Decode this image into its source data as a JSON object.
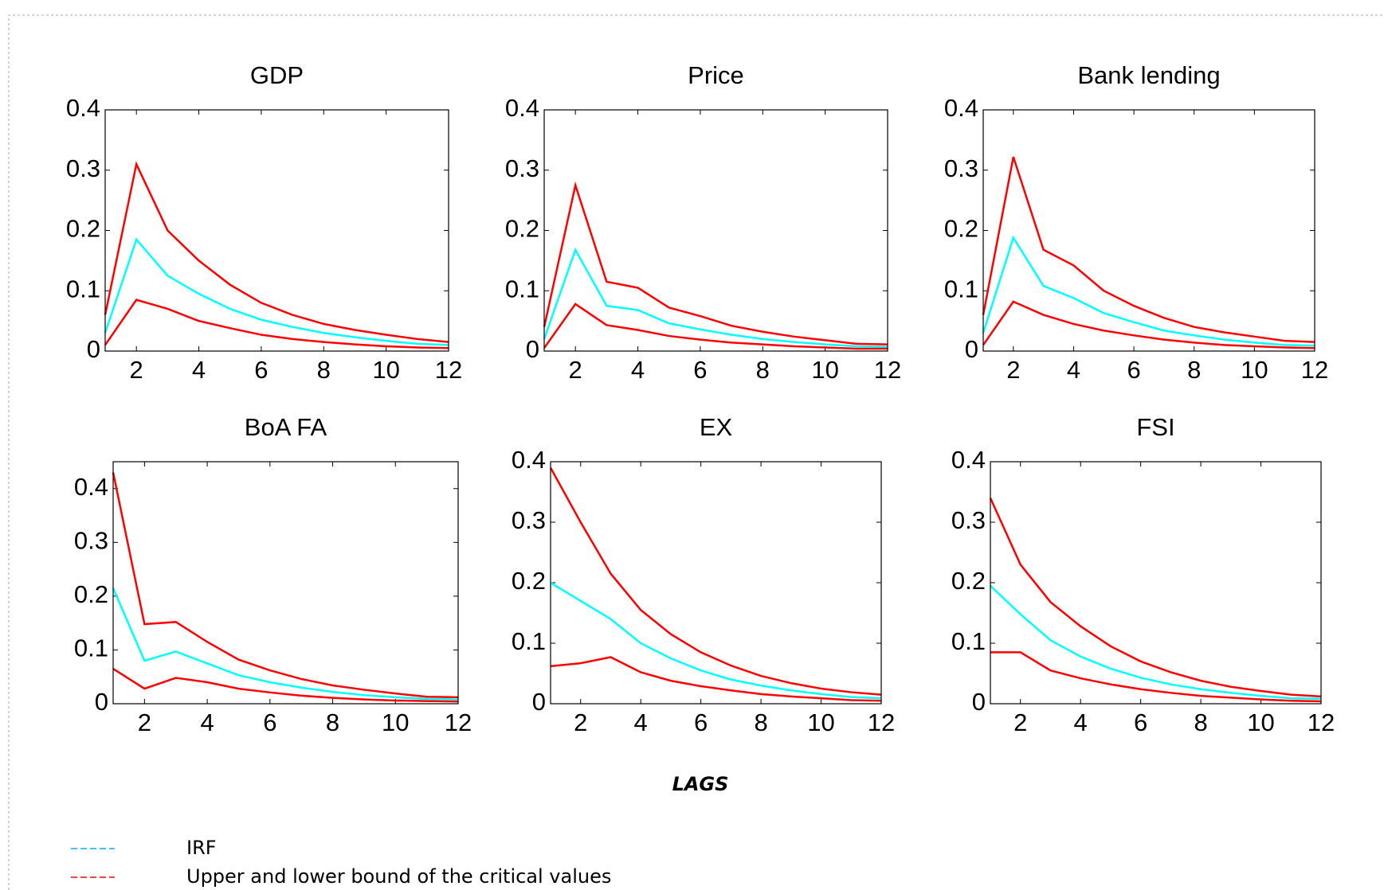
{
  "chart_data": [
    {
      "type": "line",
      "title": "GDP",
      "x": [
        1,
        2,
        3,
        4,
        5,
        6,
        7,
        8,
        9,
        10,
        11,
        12
      ],
      "xlim": [
        1,
        12
      ],
      "xticks": [
        2,
        4,
        6,
        8,
        10,
        12
      ],
      "ylim": [
        0,
        0.4
      ],
      "yticks": [
        0,
        0.1,
        0.2,
        0.3,
        0.4
      ],
      "series": [
        {
          "color": "#ff0000",
          "values": [
            0.06,
            0.31,
            0.2,
            0.15,
            0.11,
            0.08,
            0.06,
            0.045,
            0.035,
            0.027,
            0.02,
            0.015
          ]
        },
        {
          "color": "#00ffff",
          "values": [
            0.03,
            0.185,
            0.125,
            0.095,
            0.07,
            0.052,
            0.04,
            0.03,
            0.023,
            0.017,
            0.012,
            0.01
          ]
        },
        {
          "color": "#ff0000",
          "values": [
            0.01,
            0.085,
            0.07,
            0.05,
            0.038,
            0.027,
            0.02,
            0.015,
            0.011,
            0.008,
            0.006,
            0.005
          ]
        }
      ]
    },
    {
      "type": "line",
      "title": "Price",
      "x": [
        1,
        2,
        3,
        4,
        5,
        6,
        7,
        8,
        9,
        10,
        11,
        12
      ],
      "xlim": [
        1,
        12
      ],
      "xticks": [
        2,
        4,
        6,
        8,
        10,
        12
      ],
      "ylim": [
        0,
        0.4
      ],
      "yticks": [
        0,
        0.1,
        0.2,
        0.3,
        0.4
      ],
      "series": [
        {
          "color": "#ff0000",
          "values": [
            0.04,
            0.275,
            0.115,
            0.105,
            0.072,
            0.058,
            0.042,
            0.032,
            0.024,
            0.018,
            0.012,
            0.011
          ]
        },
        {
          "color": "#00ffff",
          "values": [
            0.02,
            0.168,
            0.075,
            0.068,
            0.046,
            0.036,
            0.027,
            0.02,
            0.015,
            0.011,
            0.008,
            0.007
          ]
        },
        {
          "color": "#ff0000",
          "values": [
            0.005,
            0.078,
            0.043,
            0.035,
            0.025,
            0.019,
            0.014,
            0.011,
            0.008,
            0.006,
            0.004,
            0.004
          ]
        }
      ]
    },
    {
      "type": "line",
      "title": "Bank lending",
      "x": [
        1,
        2,
        3,
        4,
        5,
        6,
        7,
        8,
        9,
        10,
        11,
        12
      ],
      "xlim": [
        1,
        12
      ],
      "xticks": [
        2,
        4,
        6,
        8,
        10,
        12
      ],
      "ylim": [
        0,
        0.4
      ],
      "yticks": [
        0,
        0.1,
        0.2,
        0.3,
        0.4
      ],
      "series": [
        {
          "color": "#ff0000",
          "values": [
            0.06,
            0.322,
            0.168,
            0.142,
            0.1,
            0.075,
            0.055,
            0.04,
            0.031,
            0.024,
            0.017,
            0.015
          ]
        },
        {
          "color": "#00ffff",
          "values": [
            0.03,
            0.188,
            0.108,
            0.088,
            0.063,
            0.048,
            0.034,
            0.026,
            0.019,
            0.014,
            0.01,
            0.009
          ]
        },
        {
          "color": "#ff0000",
          "values": [
            0.01,
            0.082,
            0.06,
            0.045,
            0.034,
            0.026,
            0.019,
            0.014,
            0.01,
            0.008,
            0.006,
            0.005
          ]
        }
      ]
    },
    {
      "type": "line",
      "title": "BoA FA",
      "x": [
        1,
        2,
        3,
        4,
        5,
        6,
        7,
        8,
        9,
        10,
        11,
        12
      ],
      "xlim": [
        1,
        12
      ],
      "xticks": [
        2,
        4,
        6,
        8,
        10,
        12
      ],
      "ylim": [
        0,
        0.45
      ],
      "yticks": [
        0,
        0.1,
        0.2,
        0.3,
        0.4
      ],
      "series": [
        {
          "color": "#ff0000",
          "values": [
            0.43,
            0.148,
            0.152,
            0.115,
            0.082,
            0.062,
            0.046,
            0.034,
            0.026,
            0.019,
            0.013,
            0.012
          ]
        },
        {
          "color": "#00ffff",
          "values": [
            0.215,
            0.08,
            0.097,
            0.075,
            0.053,
            0.04,
            0.03,
            0.022,
            0.016,
            0.012,
            0.009,
            0.008
          ]
        },
        {
          "color": "#ff0000",
          "values": [
            0.065,
            0.028,
            0.048,
            0.04,
            0.028,
            0.021,
            0.015,
            0.011,
            0.008,
            0.006,
            0.005,
            0.004
          ]
        }
      ]
    },
    {
      "type": "line",
      "title": "EX",
      "x": [
        1,
        2,
        3,
        4,
        5,
        6,
        7,
        8,
        9,
        10,
        11,
        12
      ],
      "xlim": [
        1,
        12
      ],
      "xticks": [
        2,
        4,
        6,
        8,
        10,
        12
      ],
      "ylim": [
        0,
        0.4
      ],
      "yticks": [
        0,
        0.1,
        0.2,
        0.3,
        0.4
      ],
      "series": [
        {
          "color": "#ff0000",
          "values": [
            0.39,
            0.3,
            0.215,
            0.155,
            0.115,
            0.085,
            0.063,
            0.046,
            0.034,
            0.025,
            0.019,
            0.015
          ]
        },
        {
          "color": "#00ffff",
          "values": [
            0.2,
            0.17,
            0.14,
            0.1,
            0.075,
            0.055,
            0.04,
            0.03,
            0.022,
            0.016,
            0.011,
            0.009
          ]
        },
        {
          "color": "#ff0000",
          "values": [
            0.062,
            0.067,
            0.077,
            0.052,
            0.038,
            0.029,
            0.022,
            0.016,
            0.012,
            0.009,
            0.006,
            0.005
          ]
        }
      ]
    },
    {
      "type": "line",
      "title": "FSI",
      "x": [
        1,
        2,
        3,
        4,
        5,
        6,
        7,
        8,
        9,
        10,
        11,
        12
      ],
      "xlim": [
        1,
        12
      ],
      "xticks": [
        2,
        4,
        6,
        8,
        10,
        12
      ],
      "ylim": [
        0,
        0.4
      ],
      "yticks": [
        0,
        0.1,
        0.2,
        0.3,
        0.4
      ],
      "series": [
        {
          "color": "#ff0000",
          "values": [
            0.34,
            0.23,
            0.168,
            0.128,
            0.095,
            0.07,
            0.052,
            0.038,
            0.028,
            0.021,
            0.015,
            0.012
          ]
        },
        {
          "color": "#00ffff",
          "values": [
            0.195,
            0.148,
            0.105,
            0.078,
            0.058,
            0.043,
            0.032,
            0.024,
            0.018,
            0.013,
            0.009,
            0.008
          ]
        },
        {
          "color": "#ff0000",
          "values": [
            0.085,
            0.085,
            0.055,
            0.042,
            0.032,
            0.024,
            0.018,
            0.013,
            0.01,
            0.007,
            0.005,
            0.004
          ]
        }
      ]
    }
  ],
  "xlabel": "LAGS",
  "legend": [
    {
      "label": "IRF",
      "color": "#00b0f0"
    },
    {
      "label": "Upper and lower bound of the critical values",
      "color": "#ff0000"
    }
  ]
}
